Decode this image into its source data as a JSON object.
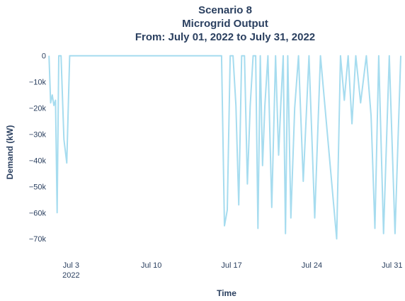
{
  "chart_data": {
    "type": "line",
    "title_lines": [
      "Scenario 8",
      "Microgrid Output",
      "From: July 01, 2022 to July 31, 2022"
    ],
    "xlabel": "Time",
    "ylabel": "Demand (kW)",
    "x_range_days": [
      "2022-07-01",
      "2022-07-31"
    ],
    "ylim": [
      -74000,
      1000
    ],
    "yticks": [
      0,
      -10000,
      -20000,
      -30000,
      -40000,
      -50000,
      -60000,
      -70000
    ],
    "ytick_labels": [
      "0",
      "−10k",
      "−20k",
      "−30k",
      "−40k",
      "−50k",
      "−60k",
      "−70k"
    ],
    "xticks": [
      {
        "date": "2022-07-03",
        "label": "Jul 3",
        "sublabel": "2022"
      },
      {
        "date": "2022-07-10",
        "label": "Jul 10",
        "sublabel": ""
      },
      {
        "date": "2022-07-17",
        "label": "Jul 17",
        "sublabel": ""
      },
      {
        "date": "2022-07-24",
        "label": "Jul 24",
        "sublabel": ""
      },
      {
        "date": "2022-07-31",
        "label": "Jul 31",
        "sublabel": ""
      }
    ],
    "line_color": "#a6dcef",
    "grid": false,
    "series": [
      {
        "values_description": "Demand in kW vs. time; values mostly near 0 with negative dips",
        "points": [
          [
            "2022-07-01",
            0
          ],
          [
            "2022-07-01",
            -18000
          ],
          [
            "2022-07-01",
            -15000
          ],
          [
            "2022-07-01",
            -19000
          ],
          [
            "2022-07-01",
            -17000
          ],
          [
            "2022-07-01",
            -60000
          ],
          [
            "2022-07-01",
            0
          ],
          [
            "2022-07-02",
            0
          ],
          [
            "2022-07-02",
            -32000
          ],
          [
            "2022-07-02",
            -41000
          ],
          [
            "2022-07-02",
            0
          ],
          [
            "2022-07-16",
            0
          ],
          [
            "2022-07-16",
            -65000
          ],
          [
            "2022-07-16",
            -59000
          ],
          [
            "2022-07-16",
            0
          ],
          [
            "2022-07-17",
            0
          ],
          [
            "2022-07-17",
            -19000
          ],
          [
            "2022-07-17",
            -57000
          ],
          [
            "2022-07-17",
            0
          ],
          [
            "2022-07-18",
            0
          ],
          [
            "2022-07-18",
            -49000
          ],
          [
            "2022-07-18",
            -19000
          ],
          [
            "2022-07-18",
            0
          ],
          [
            "2022-07-19",
            0
          ],
          [
            "2022-07-19",
            -66000
          ],
          [
            "2022-07-19",
            0
          ],
          [
            "2022-07-19",
            -42000
          ],
          [
            "2022-07-19",
            -19000
          ],
          [
            "2022-07-20",
            0
          ],
          [
            "2022-07-20",
            -58000
          ],
          [
            "2022-07-20",
            0
          ],
          [
            "2022-07-21",
            -38000
          ],
          [
            "2022-07-21",
            -18000
          ],
          [
            "2022-07-21",
            0
          ],
          [
            "2022-07-21",
            -68000
          ],
          [
            "2022-07-21",
            0
          ],
          [
            "2022-07-22",
            -62000
          ],
          [
            "2022-07-22",
            -20000
          ],
          [
            "2022-07-22",
            0
          ],
          [
            "2022-07-23",
            -48000
          ],
          [
            "2022-07-23",
            0
          ],
          [
            "2022-07-24",
            -62000
          ],
          [
            "2022-07-24",
            0
          ],
          [
            "2022-07-26",
            -70000
          ],
          [
            "2022-07-26",
            0
          ],
          [
            "2022-07-26",
            -17000
          ],
          [
            "2022-07-27",
            0
          ],
          [
            "2022-07-27",
            -26000
          ],
          [
            "2022-07-27",
            0
          ],
          [
            "2022-07-28",
            -18000
          ],
          [
            "2022-07-28",
            0
          ],
          [
            "2022-07-29",
            -23000
          ],
          [
            "2022-07-29",
            -66000
          ],
          [
            "2022-07-29",
            0
          ],
          [
            "2022-07-30",
            -68000
          ],
          [
            "2022-07-30",
            0
          ],
          [
            "2022-07-31",
            -68000
          ],
          [
            "2022-07-31",
            0
          ]
        ]
      }
    ]
  }
}
